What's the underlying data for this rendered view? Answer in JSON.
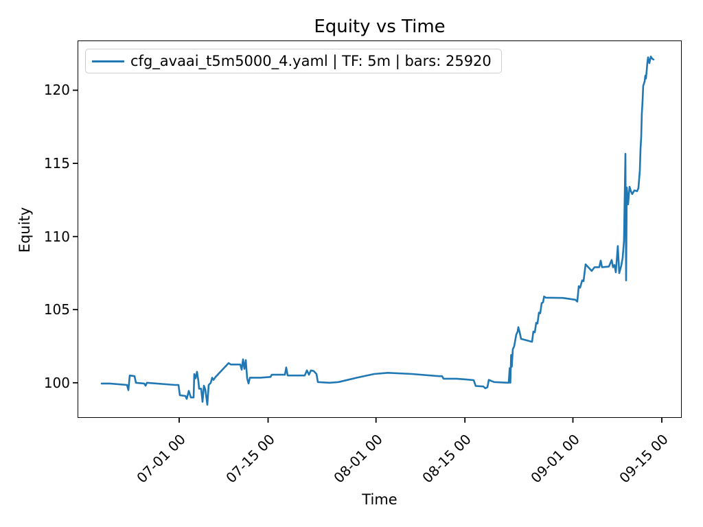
{
  "figure": {
    "title": "Equity vs Time",
    "xlabel": "Time",
    "ylabel": "Equity",
    "background_color": "#ffffff",
    "spine_color": "#000000"
  },
  "legend": {
    "label": "cfg_avaai_t5m5000_4.yaml | TF: 5m | bars: 25920",
    "line_color": "#1f77b4",
    "position": "upper left"
  },
  "chart_data": {
    "type": "line",
    "title": "Equity vs Time",
    "xlabel": "Time",
    "ylabel": "Equity",
    "grid": false,
    "legend_position": "upper left",
    "x_unit": "days since 06-15 00:00",
    "xlim": [
      0,
      95.14
    ],
    "ylim": [
      97.6,
      123.4
    ],
    "y_ticks": [
      100,
      105,
      110,
      115,
      120
    ],
    "x_ticks": [
      {
        "day": 16,
        "label": "07-01 00"
      },
      {
        "day": 30,
        "label": "07-15 00"
      },
      {
        "day": 47,
        "label": "08-01 00"
      },
      {
        "day": 61,
        "label": "08-15 00"
      },
      {
        "day": 78,
        "label": "09-01 00"
      },
      {
        "day": 92,
        "label": "09-15 00"
      }
    ],
    "series": [
      {
        "name": "cfg_avaai_t5m5000_4.yaml | TF: 5m | bars: 25920",
        "color": "#1f77b4",
        "line_width": 2.6,
        "points": [
          [
            3.78,
            99.95
          ],
          [
            5.08,
            99.95
          ],
          [
            7.78,
            99.85
          ],
          [
            8.0,
            99.5
          ],
          [
            8.22,
            100.5
          ],
          [
            8.97,
            100.45
          ],
          [
            9.19,
            100.0
          ],
          [
            10.49,
            99.95
          ],
          [
            10.7,
            99.8
          ],
          [
            10.92,
            100.0
          ],
          [
            15.35,
            99.85
          ],
          [
            15.89,
            99.85
          ],
          [
            16.11,
            99.15
          ],
          [
            16.97,
            99.1
          ],
          [
            17.19,
            98.9
          ],
          [
            17.51,
            99.45
          ],
          [
            17.84,
            99.0
          ],
          [
            18.27,
            99.0
          ],
          [
            18.38,
            100.6
          ],
          [
            18.59,
            100.3
          ],
          [
            18.81,
            100.75
          ],
          [
            19.03,
            100.1
          ],
          [
            19.14,
            99.6
          ],
          [
            19.46,
            99.6
          ],
          [
            19.68,
            98.7
          ],
          [
            19.89,
            99.8
          ],
          [
            20.11,
            99.55
          ],
          [
            20.43,
            98.5
          ],
          [
            20.65,
            99.85
          ],
          [
            20.97,
            100.0
          ],
          [
            21.19,
            100.35
          ],
          [
            21.41,
            100.2
          ],
          [
            21.73,
            100.4
          ],
          [
            23.78,
            101.35
          ],
          [
            24.11,
            101.25
          ],
          [
            25.62,
            101.25
          ],
          [
            25.84,
            100.9
          ],
          [
            26.05,
            101.6
          ],
          [
            26.27,
            100.95
          ],
          [
            26.49,
            101.55
          ],
          [
            26.7,
            100.3
          ],
          [
            26.92,
            99.95
          ],
          [
            27.14,
            100.35
          ],
          [
            28.86,
            100.35
          ],
          [
            30.38,
            100.4
          ],
          [
            30.59,
            100.55
          ],
          [
            32.65,
            100.55
          ],
          [
            32.86,
            101.05
          ],
          [
            33.08,
            100.5
          ],
          [
            35.78,
            100.5
          ],
          [
            36.11,
            100.85
          ],
          [
            36.43,
            100.55
          ],
          [
            36.76,
            100.85
          ],
          [
            37.19,
            100.8
          ],
          [
            37.62,
            100.6
          ],
          [
            37.84,
            100.05
          ],
          [
            39.68,
            100.0
          ],
          [
            41.08,
            100.05
          ],
          [
            44.0,
            100.35
          ],
          [
            46.7,
            100.6
          ],
          [
            48.86,
            100.68
          ],
          [
            52.65,
            100.6
          ],
          [
            56.97,
            100.45
          ],
          [
            57.41,
            100.45
          ],
          [
            57.62,
            100.28
          ],
          [
            59.68,
            100.28
          ],
          [
            61.3,
            100.22
          ],
          [
            62.38,
            100.18
          ],
          [
            62.7,
            99.78
          ],
          [
            63.89,
            99.75
          ],
          [
            64.22,
            99.62
          ],
          [
            64.54,
            99.7
          ],
          [
            64.76,
            100.2
          ],
          [
            65.19,
            100.12
          ],
          [
            65.62,
            100.05
          ],
          [
            67.89,
            100.0
          ],
          [
            68.05,
            101.0
          ],
          [
            68.16,
            100.0
          ],
          [
            68.27,
            101.9
          ],
          [
            68.38,
            101.1
          ],
          [
            68.54,
            102.3
          ],
          [
            68.76,
            102.5
          ],
          [
            69.08,
            103.3
          ],
          [
            69.3,
            103.5
          ],
          [
            69.41,
            103.8
          ],
          [
            69.62,
            103.45
          ],
          [
            69.84,
            103.0
          ],
          [
            70.27,
            102.95
          ],
          [
            71.57,
            102.8
          ],
          [
            71.78,
            103.5
          ],
          [
            72.0,
            103.45
          ],
          [
            72.22,
            104.1
          ],
          [
            72.43,
            104.05
          ],
          [
            72.65,
            104.8
          ],
          [
            72.86,
            104.75
          ],
          [
            73.08,
            105.45
          ],
          [
            73.3,
            105.5
          ],
          [
            73.46,
            105.9
          ],
          [
            73.73,
            105.82
          ],
          [
            76.43,
            105.8
          ],
          [
            78.38,
            105.68
          ],
          [
            78.7,
            105.55
          ],
          [
            78.92,
            106.6
          ],
          [
            79.14,
            106.5
          ],
          [
            79.46,
            107.0
          ],
          [
            79.68,
            106.95
          ],
          [
            80.0,
            108.1
          ],
          [
            80.32,
            107.95
          ],
          [
            80.97,
            107.65
          ],
          [
            81.41,
            107.9
          ],
          [
            82.16,
            107.9
          ],
          [
            82.38,
            108.35
          ],
          [
            82.59,
            107.9
          ],
          [
            83.68,
            107.95
          ],
          [
            84.11,
            108.4
          ],
          [
            84.32,
            107.9
          ],
          [
            84.54,
            108.05
          ],
          [
            84.76,
            107.55
          ],
          [
            85.08,
            109.35
          ],
          [
            85.3,
            107.5
          ],
          [
            85.62,
            108.0
          ],
          [
            85.84,
            108.55
          ],
          [
            86.05,
            109.7
          ],
          [
            86.27,
            115.65
          ],
          [
            86.38,
            107.0
          ],
          [
            86.49,
            113.35
          ],
          [
            86.7,
            112.2
          ],
          [
            86.92,
            113.4
          ],
          [
            87.14,
            113.1
          ],
          [
            87.35,
            112.9
          ],
          [
            87.68,
            113.15
          ],
          [
            88.11,
            113.1
          ],
          [
            88.32,
            113.3
          ],
          [
            88.54,
            114.5
          ],
          [
            88.65,
            116.0
          ],
          [
            88.76,
            116.8
          ],
          [
            88.86,
            118.4
          ],
          [
            88.97,
            119.2
          ],
          [
            89.08,
            120.3
          ],
          [
            89.3,
            120.6
          ],
          [
            89.41,
            121.0
          ],
          [
            89.51,
            120.8
          ],
          [
            89.62,
            121.3
          ],
          [
            89.73,
            121.9
          ],
          [
            89.84,
            122.25
          ],
          [
            90.05,
            121.85
          ],
          [
            90.27,
            122.3
          ],
          [
            90.49,
            122.15
          ],
          [
            90.7,
            122.1
          ]
        ]
      }
    ]
  }
}
